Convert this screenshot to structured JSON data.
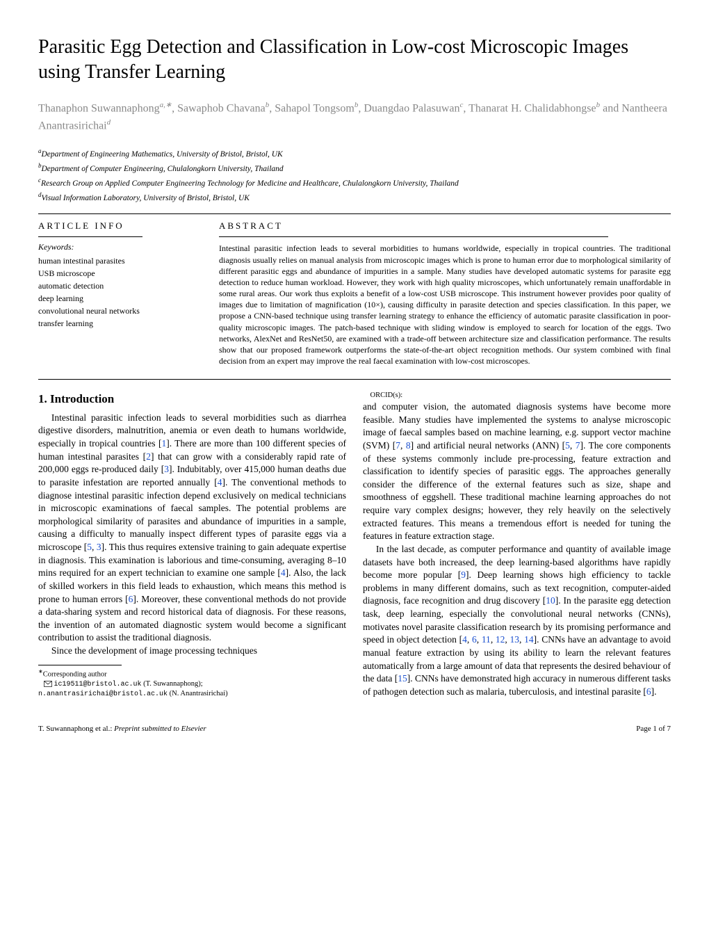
{
  "title": "Parasitic Egg Detection and Classification in Low-cost Microscopic Images using Transfer Learning",
  "authors_html": "Thanaphon Suwannaphong<span class='sup'>a,∗</span>, Sawaphob Chavana<span class='sup'>b</span>, Sahapol Tongsom<span class='sup'>b</span>, Duangdao Palasuwan<span class='sup'>c</span>, Thanarat H. Chalidabhongse<span class='sup'>b</span> and  Nantheera Anantrasirichai<span class='sup'>d</span>",
  "affiliations": [
    {
      "sup": "a",
      "text": "Department of Engineering Mathematics, University of Bristol, Bristol, UK"
    },
    {
      "sup": "b",
      "text": "Department of Computer Engineering, Chulalongkorn University, Thailand"
    },
    {
      "sup": "c",
      "text": "Research Group on Applied Computer Engineering Technology for Medicine and Healthcare, Chulalongkorn University, Thailand"
    },
    {
      "sup": "d",
      "text": "Visual Information Laboratory, University of Bristol, Bristol, UK"
    }
  ],
  "article_info_head": "ARTICLE INFO",
  "abstract_head": "ABSTRACT",
  "keywords_label": "Keywords:",
  "keywords": "human intestinal parasites\nUSB microscope\nautomatic detection\ndeep learning\nconvolutional neural networks\ntransfer learning",
  "abstract": "Intestinal parasitic infection leads to several morbidities to humans worldwide, especially in tropical countries. The traditional diagnosis usually relies on manual analysis from microscopic images which is prone to human error due to morphological similarity of different parasitic eggs and abundance of impurities in a sample. Many studies have developed automatic systems for parasite egg detection to reduce human workload. However, they work with high quality microscopes, which unfortunately remain unaffordable in some rural areas. Our work thus exploits a benefit of a low-cost USB microscope. This instrument however provides poor quality of images due to limitation of magnification (10×), causing difficulty in parasite detection and species classification. In this paper, we propose a CNN-based technique using transfer learning strategy to enhance the efficiency of automatic parasite classification in poor-quality microscopic images. The patch-based technique with sliding window is employed to search for location of the eggs. Two networks, AlexNet and ResNet50, are examined with a trade-off between architecture size and classification performance. The results show that our proposed framework outperforms the state-of-the-art object recognition methods. Our system combined with final decision from an expert may improve the real faecal examination with low-cost microscopes.",
  "intro_head": "1.  Introduction",
  "body_p1": "Intestinal parasitic infection leads to several morbidities such as diarrhea digestive disorders, malnutrition, anemia or even death to humans worldwide, especially in tropical countries [<span class='blue'>1</span>]. There are more than 100 different species of human intestinal parasites [<span class='blue'>2</span>] that can grow with a considerably rapid rate of 200,000 eggs re-produced daily [<span class='blue'>3</span>]. Indubitably, over 415,000 human deaths due to parasite infestation are reported annually [<span class='blue'>4</span>]. The conventional methods to diagnose intestinal parasitic infection depend exclusively on medical technicians in microscopic examinations of faecal samples. The potential problems are morphological similarity of parasites and abundance of impurities in a sample, causing a difficulty to manually inspect different types of parasite eggs via a microscope [<span class='blue'>5</span>, <span class='blue'>3</span>]. This thus requires extensive training to gain adequate expertise in diagnosis. This examination is laborious and time-consuming, averaging 8–10 mins required for an expert technician to examine one sample [<span class='blue'>4</span>]. Also, the lack of skilled workers in this field leads to exhaustion, which means this method is prone to human errors [<span class='blue'>6</span>]. Moreover, these conventional methods do not provide a data-sharing system and record historical data of diagnosis. For these reasons, the invention of an automated diagnostic system would become a significant contribution to assist the traditional diagnosis.",
  "body_p2": "Since the development of image processing techniques",
  "body_p3": "and computer vision, the automated diagnosis systems have become more feasible. Many studies have implemented the systems to analyse microscopic image of faecal samples based on machine learning, e.g. support vector machine (SVM) [<span class='blue'>7</span>, <span class='blue'>8</span>] and artificial neural networks (ANN) [<span class='blue'>5</span>, <span class='blue'>7</span>]. The core components of these systems commonly include pre-processing, feature extraction and classification to identify species of parasitic eggs. The approaches generally consider the difference of the external features such as size, shape and smoothness of eggshell. These traditional machine learning approaches do not require vary complex designs; however, they rely heavily on the selectively extracted features. This means a tremendous effort is needed for tuning the features in feature extraction stage.",
  "body_p4": "In the last decade, as computer performance and quantity of available image datasets have both increased, the deep learning-based algorithms have rapidly become more popular [<span class='blue'>9</span>]. Deep learning shows high efficiency to tackle problems in many different domains, such as text recognition, computer-aided diagnosis, face recognition and drug discovery [<span class='blue'>10</span>]. In the parasite egg detection task, deep learning, especially the convolutional neural networks (CNNs), motivates novel parasite classification research by its promising performance and speed in object detection [<span class='blue'>4</span>, <span class='blue'>6</span>, <span class='blue'>11</span>, <span class='blue'>12</span>, <span class='blue'>13</span>, <span class='blue'>14</span>]. CNNs have an advantage to avoid manual feature extraction by using its ability to learn the relevant features automatically from a large amount of data that represents the desired behaviour of the data [<span class='blue'>15</span>]. CNNs have demonstrated high accuracy in numerous different tasks of pathogen detection such as malaria, tuberculosis, and intestinal parasite [<span class='blue'>6</span>].",
  "corresponding": "Corresponding author",
  "email1": "ic19511@bristol.ac.uk",
  "email1_name": "(T. Suwannaphong);",
  "email2": "n.anantrasirichai@bristol.ac.uk",
  "email2_name": "(N. Anantrasirichai)",
  "orcid": "ORCID(s):",
  "footer_left": "T. Suwannaphong et al.:",
  "footer_mid": "Preprint submitted to Elsevier",
  "footer_right": "Page 1 of 7"
}
